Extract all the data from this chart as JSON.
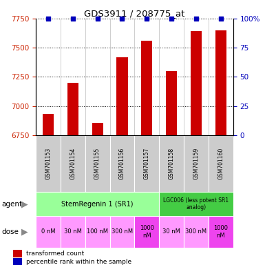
{
  "title": "GDS3911 / 208775_at",
  "samples": [
    "GSM701153",
    "GSM701154",
    "GSM701155",
    "GSM701156",
    "GSM701157",
    "GSM701158",
    "GSM701159",
    "GSM701160"
  ],
  "bar_values": [
    6930,
    7200,
    6855,
    7420,
    7560,
    7300,
    7640,
    7650
  ],
  "ylim_left": [
    6750,
    7750
  ],
  "ylim_right": [
    0,
    100
  ],
  "yticks_left": [
    6750,
    7000,
    7250,
    7500,
    7750
  ],
  "yticks_right": [
    0,
    25,
    50,
    75,
    100
  ],
  "bar_color": "#cc0000",
  "percentile_color": "#0000bb",
  "label_left_color": "#cc2200",
  "label_right_color": "#0000bb",
  "bar_width": 0.45,
  "sr1_color": "#99ff99",
  "lgc_color": "#44cc44",
  "dose_light": "#ff99ff",
  "dose_dark": "#ee44ee",
  "dose_labels": [
    "0 nM",
    "30 nM",
    "100 nM",
    "300 nM",
    "1000\nnM",
    "30 nM",
    "300 nM",
    "1000\nnM"
  ],
  "dose_dark_idx": [
    4,
    7
  ],
  "sample_bg": "#cccccc"
}
